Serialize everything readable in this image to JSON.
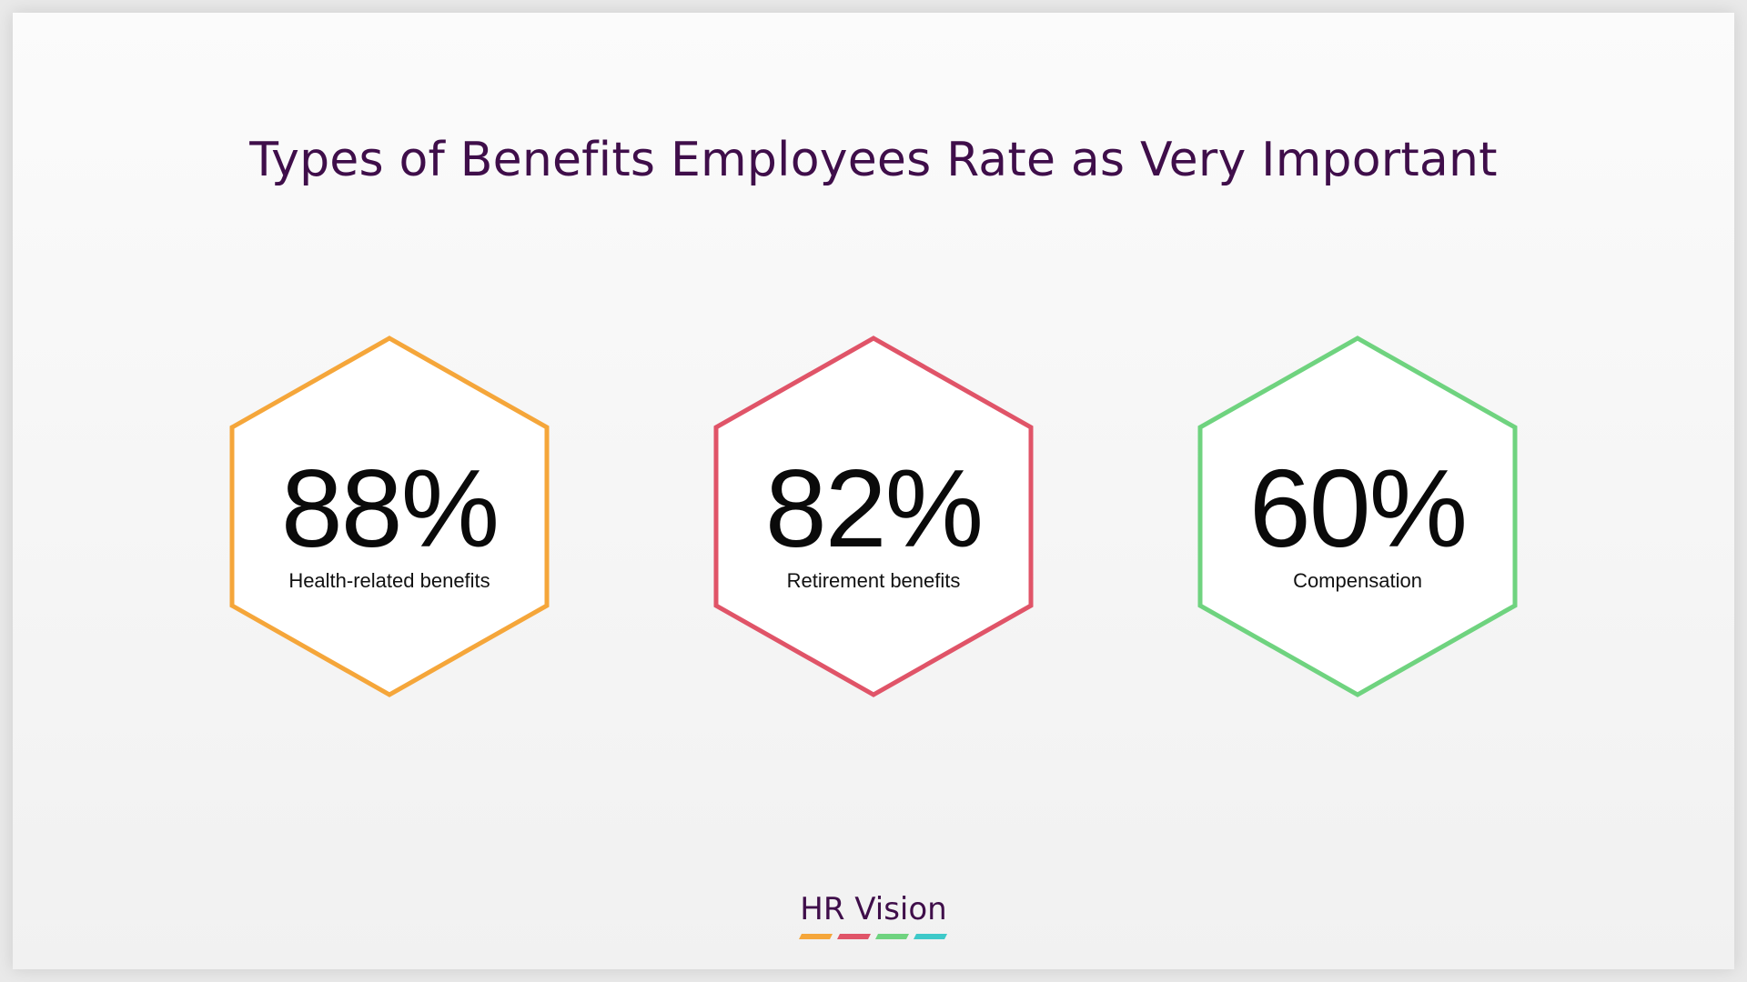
{
  "title": "Types of Benefits Employees Rate as Very Important",
  "stats": [
    {
      "value": "88%",
      "label": "Health-related benefits",
      "color": "#f5a63a"
    },
    {
      "value": "82%",
      "label": "Retirement benefits",
      "color": "#e05468"
    },
    {
      "value": "60%",
      "label": "Compensation",
      "color": "#6fd37f"
    }
  ],
  "brand": {
    "name": "HR Vision",
    "colors": [
      "#f5a63a",
      "#e05468",
      "#6fd37f",
      "#3ec9c9"
    ]
  }
}
